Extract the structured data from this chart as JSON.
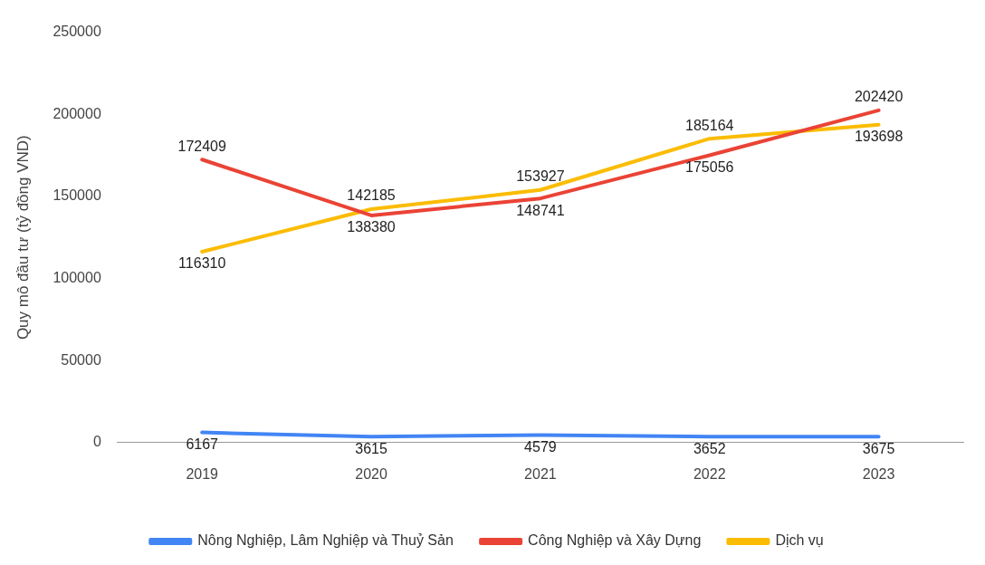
{
  "chart_data": {
    "type": "line",
    "ylabel": "Quy mô đầu tư (tỷ đồng VND)",
    "categories": [
      "2019",
      "2020",
      "2021",
      "2022",
      "2023"
    ],
    "series": [
      {
        "name": "Nông Nghiệp, Lâm Nghiệp và Thuỷ Sản",
        "color": "#4285f4",
        "values": [
          6167,
          3615,
          4579,
          3652,
          3675
        ]
      },
      {
        "name": "Công Nghiệp và Xây Dựng",
        "color": "#ea4335",
        "values": [
          172409,
          138380,
          148741,
          175056,
          202420
        ]
      },
      {
        "name": "Dịch vụ",
        "color": "#fbbc04",
        "values": [
          116310,
          142185,
          153927,
          185164,
          193698
        ]
      }
    ],
    "ylim": [
      0,
      250000
    ],
    "yticks": [
      0,
      50000,
      100000,
      150000,
      200000,
      250000
    ],
    "grid": false,
    "legend": "bottom",
    "marker": "none",
    "line_style": "solid",
    "data_labels": true
  }
}
